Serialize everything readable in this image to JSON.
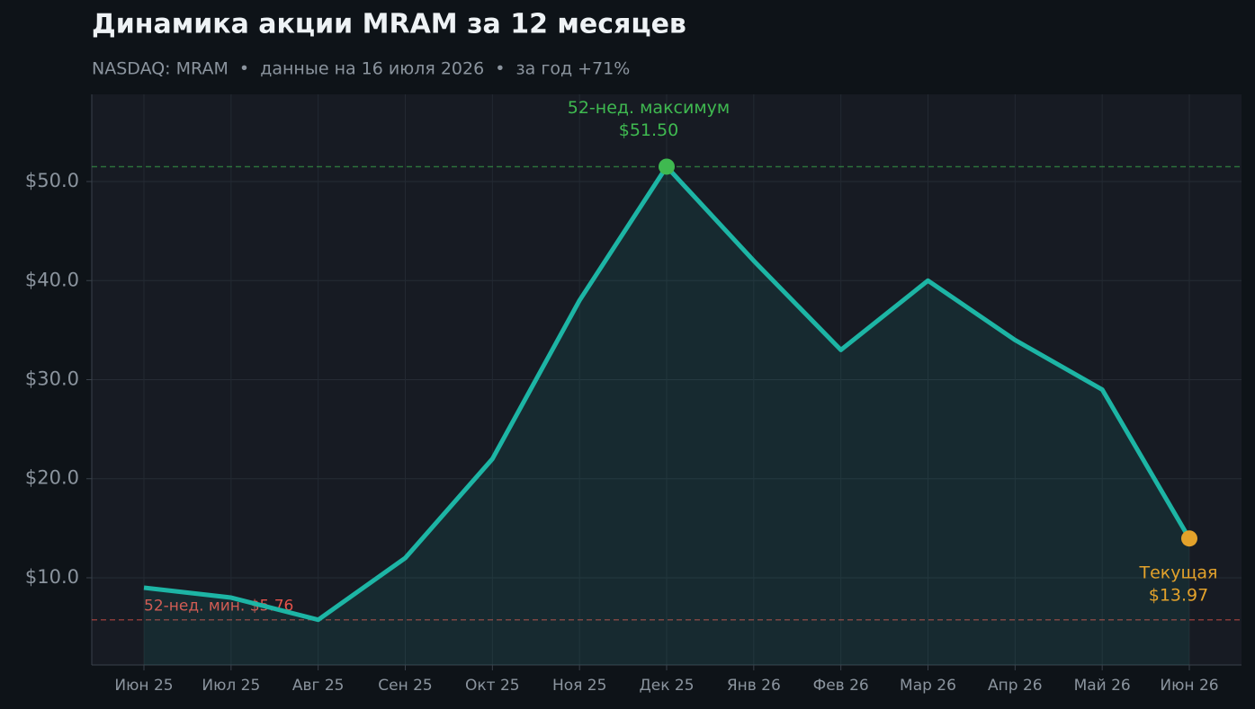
{
  "chart_data": {
    "type": "line",
    "title": "Динамика акции MRAM за 12 месяцев",
    "subtitle": "NASDAQ: MRAM  •  данные на 16 июля 2026  •  за год +71%",
    "categories": [
      "Июн 25",
      "Июл 25",
      "Авг 25",
      "Сен 25",
      "Окт 25",
      "Ноя 25",
      "Дек 25",
      "Янв 26",
      "Фев 26",
      "Мар 26",
      "Апр 26",
      "Май 26",
      "Июн 26"
    ],
    "values": [
      9.0,
      8.0,
      5.76,
      12.0,
      22.0,
      38.0,
      51.5,
      42.0,
      33.0,
      40.0,
      34.0,
      29.0,
      13.97
    ],
    "color": "#1db5a5",
    "ylim": [
      1.2,
      58.8
    ],
    "yticks": [
      {
        "value": 10,
        "label": "$10.0"
      },
      {
        "value": 20,
        "label": "$20.0"
      },
      {
        "value": 30,
        "label": "$30.0"
      },
      {
        "value": 40,
        "label": "$40.0"
      },
      {
        "value": 50,
        "label": "$50.0"
      }
    ],
    "grid": true,
    "reference_lines": [
      {
        "value": 51.5,
        "color": "#3fb950"
      },
      {
        "value": 5.76,
        "color": "#e5534b",
        "label": "52-нед. мин. $5.76"
      }
    ],
    "markers": [
      {
        "point": 6,
        "color": "#3fb950",
        "label": [
          "52-нед. максимум",
          "$51.50"
        ]
      },
      {
        "point": 12,
        "color": "#e3a22b",
        "label": [
          "Текущая",
          "$13.97"
        ]
      }
    ]
  }
}
